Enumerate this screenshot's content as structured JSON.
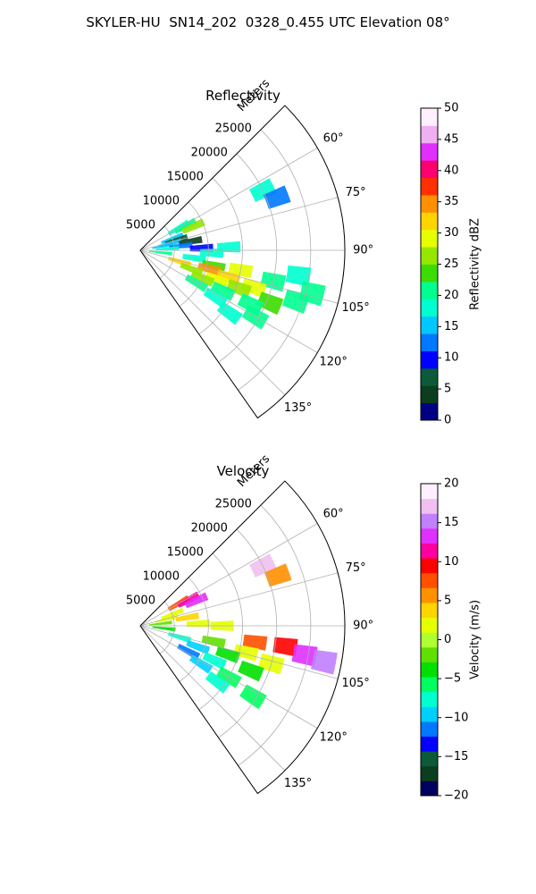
{
  "figure": {
    "suptitle": "SKYLER-HU  SN14_202  0328_0.455 UTC Elevation 08°"
  },
  "chart_data": [
    {
      "type": "heatmap",
      "projection": "polar sector",
      "title": "Reflectivity",
      "radial_label": "Meters",
      "radial_range": [
        0,
        30000
      ],
      "radial_ticks": [
        5000,
        10000,
        15000,
        20000,
        25000
      ],
      "radial_tick_labels": [
        "5000",
        "10000",
        "15000",
        "20000",
        "25000"
      ],
      "azimuth_range_deg": [
        45,
        145
      ],
      "azimuth_ticks_deg": [
        60,
        75,
        90,
        105,
        120,
        135
      ],
      "azimuth_tick_labels": [
        "60°",
        "75°",
        "90°",
        "105°",
        "120°",
        "135°"
      ],
      "grid": true,
      "colorbar": {
        "label": "Reflectivity dBZ",
        "range": [
          0,
          50
        ],
        "ticks": [
          0,
          5,
          10,
          15,
          20,
          25,
          30,
          35,
          40,
          45,
          50
        ],
        "tick_labels": [
          "0",
          "5",
          "10",
          "15",
          "20",
          "25",
          "30",
          "35",
          "40",
          "45",
          "50"
        ],
        "colors": [
          "#000080",
          "#0b3d1f",
          "#0c5a3a",
          "#0000ff",
          "#0078ff",
          "#00c8ff",
          "#00ffd0",
          "#00ff90",
          "#3cdc00",
          "#96e600",
          "#e6ff00",
          "#ffd400",
          "#ff9000",
          "#ff3000",
          "#ff0070",
          "#e030ff",
          "#f0b0f0",
          "#fff0ff"
        ]
      },
      "cells": [
        {
          "az": 60,
          "r": 6500,
          "v": 18
        },
        {
          "az": 62,
          "r": 7500,
          "v": 22
        },
        {
          "az": 66,
          "r": 8500,
          "v": 25
        },
        {
          "az": 64,
          "r": 20000,
          "v": 17
        },
        {
          "az": 69,
          "r": 21500,
          "v": 12
        },
        {
          "az": 70,
          "r": 5000,
          "v": 14
        },
        {
          "az": 74,
          "r": 5500,
          "v": 8
        },
        {
          "az": 77,
          "r": 4500,
          "v": 16
        },
        {
          "az": 80,
          "r": 7500,
          "v": 5
        },
        {
          "az": 80,
          "r": 3500,
          "v": 15
        },
        {
          "az": 84,
          "r": 6000,
          "v": 12
        },
        {
          "az": 87,
          "r": 4000,
          "v": 18
        },
        {
          "az": 88,
          "r": 9000,
          "v": 10
        },
        {
          "az": 88,
          "r": 13000,
          "v": 17
        },
        {
          "az": 92,
          "r": 10500,
          "v": 18
        },
        {
          "az": 96,
          "r": 3000,
          "v": 20
        },
        {
          "az": 98,
          "r": 8000,
          "v": 19
        },
        {
          "az": 102,
          "r": 11000,
          "v": 24
        },
        {
          "az": 101,
          "r": 15000,
          "v": 30
        },
        {
          "az": 103,
          "r": 20000,
          "v": 22
        },
        {
          "az": 99,
          "r": 23500,
          "v": 19
        },
        {
          "az": 104,
          "r": 26000,
          "v": 20
        },
        {
          "az": 106,
          "r": 6000,
          "v": 31
        },
        {
          "az": 105,
          "r": 10500,
          "v": 36
        },
        {
          "az": 107,
          "r": 13500,
          "v": 32
        },
        {
          "az": 108,
          "r": 17500,
          "v": 28
        },
        {
          "az": 108,
          "r": 24000,
          "v": 22
        },
        {
          "az": 110,
          "r": 8000,
          "v": 27
        },
        {
          "az": 111,
          "r": 12000,
          "v": 30
        },
        {
          "az": 111,
          "r": 15500,
          "v": 26
        },
        {
          "az": 112,
          "r": 20500,
          "v": 24
        },
        {
          "az": 114,
          "r": 10000,
          "v": 25
        },
        {
          "az": 116,
          "r": 13500,
          "v": 21
        },
        {
          "az": 116,
          "r": 18000,
          "v": 20
        },
        {
          "az": 120,
          "r": 9500,
          "v": 21
        },
        {
          "az": 122,
          "r": 13000,
          "v": 18
        },
        {
          "az": 120,
          "r": 19500,
          "v": 22
        },
        {
          "az": 125,
          "r": 16000,
          "v": 18
        }
      ]
    },
    {
      "type": "heatmap",
      "projection": "polar sector",
      "title": "Velocity",
      "radial_label": "Meters",
      "radial_range": [
        0,
        30000
      ],
      "radial_ticks": [
        5000,
        10000,
        15000,
        20000,
        25000
      ],
      "radial_tick_labels": [
        "5000",
        "10000",
        "15000",
        "20000",
        "25000"
      ],
      "azimuth_range_deg": [
        45,
        145
      ],
      "azimuth_ticks_deg": [
        60,
        75,
        90,
        105,
        120,
        135
      ],
      "azimuth_tick_labels": [
        "60°",
        "75°",
        "90°",
        "105°",
        "120°",
        "135°"
      ],
      "grid": true,
      "colorbar": {
        "label": "Velocity (m/s)",
        "range": [
          -20,
          20
        ],
        "ticks": [
          -20,
          -15,
          -10,
          -5,
          0,
          5,
          10,
          15,
          20
        ],
        "tick_labels": [
          "−20",
          "−15",
          "−10",
          "−5",
          "0",
          "5",
          "10",
          "15",
          "20"
        ],
        "colors": [
          "#000060",
          "#0b3d1f",
          "#0c5a3a",
          "#0000ff",
          "#0078ff",
          "#00d0ff",
          "#00ffd0",
          "#00ff60",
          "#00e000",
          "#60e000",
          "#b0ff30",
          "#e6ff00",
          "#ffd400",
          "#ff9000",
          "#ff5000",
          "#ff0000",
          "#ff00a0",
          "#e030ff",
          "#c080ff",
          "#f0c0f0",
          "#fff0ff"
        ]
      },
      "cells": [
        {
          "az": 60,
          "r": 6500,
          "v": 8
        },
        {
          "az": 62,
          "r": 8000,
          "v": 11
        },
        {
          "az": 66,
          "r": 9000,
          "v": 13
        },
        {
          "az": 64,
          "r": 20000,
          "v": 17
        },
        {
          "az": 70,
          "r": 21500,
          "v": 5
        },
        {
          "az": 70,
          "r": 5000,
          "v": 2
        },
        {
          "az": 76,
          "r": 4000,
          "v": 1
        },
        {
          "az": 80,
          "r": 7000,
          "v": 3
        },
        {
          "az": 84,
          "r": 3000,
          "v": -2
        },
        {
          "az": 88,
          "r": 8500,
          "v": 1
        },
        {
          "az": 90,
          "r": 12000,
          "v": 2
        },
        {
          "az": 96,
          "r": 3500,
          "v": -3
        },
        {
          "az": 98,
          "r": 17000,
          "v": 7
        },
        {
          "az": 98,
          "r": 21500,
          "v": 9
        },
        {
          "az": 100,
          "r": 24500,
          "v": 13
        },
        {
          "az": 101,
          "r": 27500,
          "v": 16
        },
        {
          "az": 102,
          "r": 11000,
          "v": -1
        },
        {
          "az": 104,
          "r": 16000,
          "v": 2
        },
        {
          "az": 106,
          "r": 20000,
          "v": 1
        },
        {
          "az": 106,
          "r": 6000,
          "v": -8
        },
        {
          "az": 108,
          "r": 13500,
          "v": -4
        },
        {
          "az": 110,
          "r": 9000,
          "v": -9
        },
        {
          "az": 112,
          "r": 17500,
          "v": -3
        },
        {
          "az": 115,
          "r": 12000,
          "v": -7
        },
        {
          "az": 118,
          "r": 8000,
          "v": -11
        },
        {
          "az": 120,
          "r": 15000,
          "v": -6
        },
        {
          "az": 122,
          "r": 10500,
          "v": -10
        },
        {
          "az": 122,
          "r": 19500,
          "v": -6
        },
        {
          "az": 126,
          "r": 14000,
          "v": -7
        }
      ]
    }
  ]
}
